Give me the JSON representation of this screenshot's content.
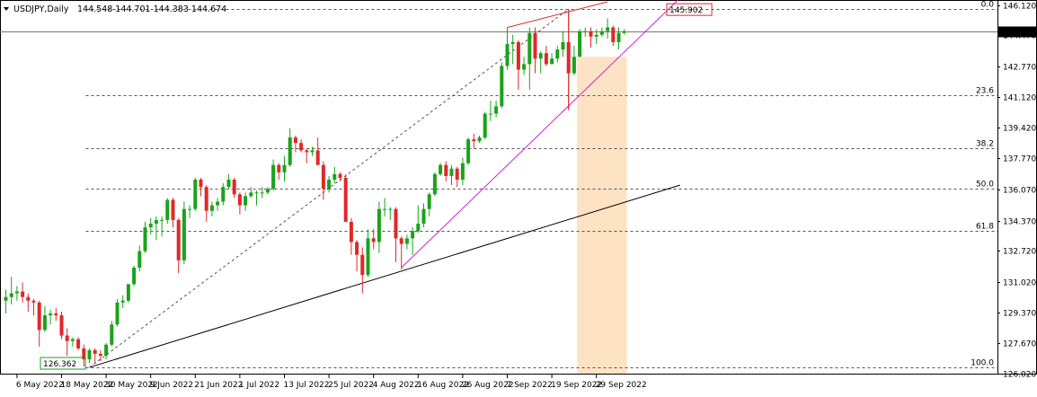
{
  "header": {
    "symbol_timeframe": "USDJPY,Daily",
    "ohlc": "144.548 144.701 144.383 144.674"
  },
  "colors": {
    "bull": "#1aa31a",
    "bear": "#e02828",
    "fib": "#555555",
    "channel_lower": "#d020d0",
    "channel_upper": "#e02828",
    "trendline": "#000000",
    "zone": "#fde3c4",
    "price_label_bg": "#000000"
  },
  "chart_data": {
    "type": "candlestick",
    "title": "USDJPY,Daily",
    "ohlc_readout": [
      144.548,
      144.701,
      144.383,
      144.674
    ],
    "ylim": [
      126.02,
      146.3
    ],
    "y_ticks": [
      "146.120",
      "144.470",
      "142.770",
      "141.120",
      "139.420",
      "137.770",
      "136.070",
      "134.370",
      "132.720",
      "131.020",
      "129.370",
      "127.670",
      "126.020"
    ],
    "x_tick_labels": [
      "6 May 2022",
      "18 May 2022",
      "30 May 2022",
      "9 Jun 2022",
      "21 Jun 2022",
      "1 Jul 2022",
      "13 Jul 2022",
      "25 Jul 2022",
      "4 Aug 2022",
      "16 Aug 2022",
      "26 Aug 2022",
      "7 Sep 2022",
      "19 Sep 2022",
      "29 Sep 2022"
    ],
    "current_price": "144.674",
    "fibonacci": {
      "levels": [
        {
          "label": "0.0",
          "price": 145.902
        },
        {
          "label": "23.6",
          "price": 141.22
        },
        {
          "label": "38.2",
          "price": 138.32
        },
        {
          "label": "50.0",
          "price": 136.13
        },
        {
          "label": "61.8",
          "price": 133.79
        },
        {
          "label": "100.0",
          "price": 126.362
        }
      ]
    },
    "annotations": [
      {
        "text": "145.902",
        "price": 145.902,
        "color": "#e02828"
      },
      {
        "text": "126.362",
        "price": 126.362,
        "color": "#1aa31a"
      }
    ],
    "candles": [
      {
        "date": "2022-05-04",
        "o": 130.0,
        "h": 130.6,
        "l": 129.3,
        "c": 130.2
      },
      {
        "date": "2022-05-05",
        "o": 130.2,
        "h": 131.3,
        "l": 129.8,
        "c": 130.4
      },
      {
        "date": "2022-05-06",
        "o": 130.4,
        "h": 130.8,
        "l": 130.0,
        "c": 130.5
      },
      {
        "date": "2022-05-09",
        "o": 130.5,
        "h": 131.0,
        "l": 129.9,
        "c": 130.2
      },
      {
        "date": "2022-05-10",
        "o": 130.2,
        "h": 130.4,
        "l": 129.4,
        "c": 130.0
      },
      {
        "date": "2022-05-11",
        "o": 130.0,
        "h": 130.1,
        "l": 129.2,
        "c": 129.9
      },
      {
        "date": "2022-05-12",
        "o": 129.9,
        "h": 130.0,
        "l": 127.5,
        "c": 128.4
      },
      {
        "date": "2022-05-13",
        "o": 128.4,
        "h": 129.7,
        "l": 128.3,
        "c": 129.2
      },
      {
        "date": "2022-05-16",
        "o": 129.2,
        "h": 129.5,
        "l": 128.7,
        "c": 129.3
      },
      {
        "date": "2022-05-17",
        "o": 129.3,
        "h": 129.6,
        "l": 128.9,
        "c": 129.2
      },
      {
        "date": "2022-05-18",
        "o": 129.2,
        "h": 129.4,
        "l": 127.9,
        "c": 128.1
      },
      {
        "date": "2022-05-19",
        "o": 128.1,
        "h": 128.5,
        "l": 127.0,
        "c": 127.8
      },
      {
        "date": "2022-05-20",
        "o": 127.8,
        "h": 128.0,
        "l": 127.5,
        "c": 127.9
      },
      {
        "date": "2022-05-23",
        "o": 127.9,
        "h": 128.0,
        "l": 127.3,
        "c": 127.4
      },
      {
        "date": "2022-05-24",
        "o": 127.4,
        "h": 127.6,
        "l": 126.4,
        "c": 126.8
      },
      {
        "date": "2022-05-25",
        "o": 126.8,
        "h": 127.4,
        "l": 126.6,
        "c": 127.3
      },
      {
        "date": "2022-05-26",
        "o": 127.3,
        "h": 127.4,
        "l": 126.6,
        "c": 127.1
      },
      {
        "date": "2022-05-27",
        "o": 127.1,
        "h": 127.3,
        "l": 126.7,
        "c": 127.0
      },
      {
        "date": "2022-05-30",
        "o": 127.0,
        "h": 127.7,
        "l": 126.8,
        "c": 127.6
      },
      {
        "date": "2022-05-31",
        "o": 127.6,
        "h": 128.9,
        "l": 127.5,
        "c": 128.7
      },
      {
        "date": "2022-06-01",
        "o": 128.7,
        "h": 130.1,
        "l": 128.6,
        "c": 129.9
      },
      {
        "date": "2022-06-02",
        "o": 129.9,
        "h": 130.3,
        "l": 129.6,
        "c": 130.0
      },
      {
        "date": "2022-06-03",
        "o": 130.0,
        "h": 130.9,
        "l": 129.9,
        "c": 130.9
      },
      {
        "date": "2022-06-06",
        "o": 130.9,
        "h": 131.9,
        "l": 130.8,
        "c": 131.8
      },
      {
        "date": "2022-06-07",
        "o": 131.8,
        "h": 133.0,
        "l": 131.6,
        "c": 132.7
      },
      {
        "date": "2022-06-08",
        "o": 132.7,
        "h": 134.3,
        "l": 132.6,
        "c": 134.0
      },
      {
        "date": "2022-06-09",
        "o": 134.0,
        "h": 134.5,
        "l": 133.6,
        "c": 134.2
      },
      {
        "date": "2022-06-10",
        "o": 134.2,
        "h": 134.6,
        "l": 133.3,
        "c": 134.4
      },
      {
        "date": "2022-06-13",
        "o": 134.4,
        "h": 134.6,
        "l": 133.5,
        "c": 134.4
      },
      {
        "date": "2022-06-14",
        "o": 134.4,
        "h": 135.6,
        "l": 134.2,
        "c": 135.5
      },
      {
        "date": "2022-06-15",
        "o": 135.5,
        "h": 135.6,
        "l": 134.0,
        "c": 134.4
      },
      {
        "date": "2022-06-16",
        "o": 134.4,
        "h": 134.5,
        "l": 131.5,
        "c": 132.2
      },
      {
        "date": "2022-06-17",
        "o": 132.2,
        "h": 135.4,
        "l": 132.0,
        "c": 135.0
      },
      {
        "date": "2022-06-20",
        "o": 135.0,
        "h": 135.2,
        "l": 134.5,
        "c": 135.0
      },
      {
        "date": "2022-06-21",
        "o": 135.0,
        "h": 136.7,
        "l": 134.9,
        "c": 136.6
      },
      {
        "date": "2022-06-22",
        "o": 136.6,
        "h": 136.7,
        "l": 135.7,
        "c": 136.2
      },
      {
        "date": "2022-06-23",
        "o": 136.2,
        "h": 136.3,
        "l": 134.3,
        "c": 134.9
      },
      {
        "date": "2022-06-24",
        "o": 134.9,
        "h": 135.4,
        "l": 134.6,
        "c": 135.2
      },
      {
        "date": "2022-06-27",
        "o": 135.2,
        "h": 135.6,
        "l": 134.9,
        "c": 135.4
      },
      {
        "date": "2022-06-28",
        "o": 135.4,
        "h": 136.4,
        "l": 135.2,
        "c": 136.2
      },
      {
        "date": "2022-06-29",
        "o": 136.2,
        "h": 136.9,
        "l": 136.1,
        "c": 136.6
      },
      {
        "date": "2022-06-30",
        "o": 136.6,
        "h": 136.7,
        "l": 135.6,
        "c": 135.8
      },
      {
        "date": "2022-07-01",
        "o": 135.8,
        "h": 135.9,
        "l": 134.7,
        "c": 135.2
      },
      {
        "date": "2022-07-04",
        "o": 135.2,
        "h": 135.9,
        "l": 134.9,
        "c": 135.7
      },
      {
        "date": "2022-07-05",
        "o": 135.7,
        "h": 136.2,
        "l": 135.6,
        "c": 135.9
      },
      {
        "date": "2022-07-06",
        "o": 135.9,
        "h": 136.0,
        "l": 135.2,
        "c": 135.9
      },
      {
        "date": "2022-07-07",
        "o": 135.9,
        "h": 136.2,
        "l": 135.6,
        "c": 135.9
      },
      {
        "date": "2022-07-08",
        "o": 135.9,
        "h": 136.2,
        "l": 135.8,
        "c": 136.1
      },
      {
        "date": "2022-07-11",
        "o": 136.1,
        "h": 137.7,
        "l": 136.0,
        "c": 137.4
      },
      {
        "date": "2022-07-12",
        "o": 137.4,
        "h": 137.5,
        "l": 136.6,
        "c": 137.0
      },
      {
        "date": "2022-07-13",
        "o": 137.0,
        "h": 137.9,
        "l": 136.5,
        "c": 137.4
      },
      {
        "date": "2022-07-14",
        "o": 137.4,
        "h": 139.4,
        "l": 137.3,
        "c": 138.9
      },
      {
        "date": "2022-07-15",
        "o": 138.9,
        "h": 139.0,
        "l": 138.1,
        "c": 138.6
      },
      {
        "date": "2022-07-18",
        "o": 138.6,
        "h": 138.8,
        "l": 138.1,
        "c": 138.2
      },
      {
        "date": "2022-07-19",
        "o": 138.2,
        "h": 138.3,
        "l": 137.5,
        "c": 138.1
      },
      {
        "date": "2022-07-20",
        "o": 138.1,
        "h": 138.4,
        "l": 137.9,
        "c": 138.2
      },
      {
        "date": "2022-07-21",
        "o": 138.2,
        "h": 138.9,
        "l": 137.4,
        "c": 137.4
      },
      {
        "date": "2022-07-22",
        "o": 137.4,
        "h": 137.6,
        "l": 135.5,
        "c": 136.1
      },
      {
        "date": "2022-07-25",
        "o": 136.1,
        "h": 136.8,
        "l": 135.9,
        "c": 136.6
      },
      {
        "date": "2022-07-26",
        "o": 136.6,
        "h": 137.3,
        "l": 136.4,
        "c": 136.9
      },
      {
        "date": "2022-07-27",
        "o": 136.9,
        "h": 137.0,
        "l": 136.5,
        "c": 136.7
      },
      {
        "date": "2022-07-28",
        "o": 136.7,
        "h": 136.9,
        "l": 134.5,
        "c": 134.3
      },
      {
        "date": "2022-07-29",
        "o": 134.3,
        "h": 134.5,
        "l": 132.5,
        "c": 133.2
      },
      {
        "date": "2022-08-01",
        "o": 133.2,
        "h": 133.3,
        "l": 131.6,
        "c": 132.5
      },
      {
        "date": "2022-08-02",
        "o": 132.5,
        "h": 132.9,
        "l": 130.4,
        "c": 131.4
      },
      {
        "date": "2022-08-03",
        "o": 131.4,
        "h": 133.9,
        "l": 131.3,
        "c": 133.4
      },
      {
        "date": "2022-08-04",
        "o": 133.4,
        "h": 133.9,
        "l": 132.8,
        "c": 133.2
      },
      {
        "date": "2022-08-05",
        "o": 133.2,
        "h": 135.4,
        "l": 132.6,
        "c": 135.0
      },
      {
        "date": "2022-08-08",
        "o": 135.0,
        "h": 135.6,
        "l": 134.6,
        "c": 135.0
      },
      {
        "date": "2022-08-09",
        "o": 135.0,
        "h": 135.1,
        "l": 134.4,
        "c": 135.0
      },
      {
        "date": "2022-08-10",
        "o": 135.0,
        "h": 135.1,
        "l": 132.1,
        "c": 133.4
      },
      {
        "date": "2022-08-11",
        "o": 133.4,
        "h": 133.5,
        "l": 131.7,
        "c": 133.1
      },
      {
        "date": "2022-08-12",
        "o": 133.1,
        "h": 133.6,
        "l": 132.8,
        "c": 133.4
      },
      {
        "date": "2022-08-15",
        "o": 133.4,
        "h": 134.0,
        "l": 132.5,
        "c": 133.8
      },
      {
        "date": "2022-08-16",
        "o": 133.8,
        "h": 135.2,
        "l": 133.7,
        "c": 134.2
      },
      {
        "date": "2022-08-17",
        "o": 134.2,
        "h": 135.3,
        "l": 134.0,
        "c": 135.0
      },
      {
        "date": "2022-08-18",
        "o": 135.0,
        "h": 135.9,
        "l": 134.6,
        "c": 135.8
      },
      {
        "date": "2022-08-19",
        "o": 135.8,
        "h": 137.0,
        "l": 135.7,
        "c": 136.9
      },
      {
        "date": "2022-08-22",
        "o": 136.9,
        "h": 137.5,
        "l": 136.8,
        "c": 137.4
      },
      {
        "date": "2022-08-23",
        "o": 137.4,
        "h": 137.6,
        "l": 136.5,
        "c": 136.8
      },
      {
        "date": "2022-08-24",
        "o": 136.8,
        "h": 137.4,
        "l": 136.3,
        "c": 137.2
      },
      {
        "date": "2022-08-25",
        "o": 137.2,
        "h": 137.3,
        "l": 136.2,
        "c": 136.6
      },
      {
        "date": "2022-08-26",
        "o": 136.6,
        "h": 137.8,
        "l": 136.3,
        "c": 137.5
      },
      {
        "date": "2022-08-29",
        "o": 137.5,
        "h": 138.9,
        "l": 137.4,
        "c": 138.8
      },
      {
        "date": "2022-08-30",
        "o": 138.8,
        "h": 139.1,
        "l": 138.3,
        "c": 138.7
      },
      {
        "date": "2022-08-31",
        "o": 138.7,
        "h": 139.0,
        "l": 138.6,
        "c": 138.9
      },
      {
        "date": "2022-09-01",
        "o": 138.9,
        "h": 140.3,
        "l": 138.8,
        "c": 140.2
      },
      {
        "date": "2022-09-02",
        "o": 140.2,
        "h": 140.9,
        "l": 139.8,
        "c": 140.2
      },
      {
        "date": "2022-09-05",
        "o": 140.2,
        "h": 140.9,
        "l": 140.0,
        "c": 140.6
      },
      {
        "date": "2022-09-06",
        "o": 140.6,
        "h": 143.0,
        "l": 140.5,
        "c": 142.8
      },
      {
        "date": "2022-09-07",
        "o": 142.8,
        "h": 144.9,
        "l": 142.6,
        "c": 144.0
      },
      {
        "date": "2022-09-08",
        "o": 144.0,
        "h": 144.5,
        "l": 142.9,
        "c": 144.1
      },
      {
        "date": "2022-09-09",
        "o": 144.1,
        "h": 144.2,
        "l": 141.5,
        "c": 142.6
      },
      {
        "date": "2022-09-12",
        "o": 142.6,
        "h": 143.3,
        "l": 142.3,
        "c": 142.9
      },
      {
        "date": "2022-09-13",
        "o": 142.9,
        "h": 144.9,
        "l": 141.5,
        "c": 144.6
      },
      {
        "date": "2022-09-14",
        "o": 144.6,
        "h": 144.9,
        "l": 142.4,
        "c": 143.2
      },
      {
        "date": "2022-09-15",
        "o": 143.2,
        "h": 143.6,
        "l": 142.4,
        "c": 143.5
      },
      {
        "date": "2022-09-16",
        "o": 143.5,
        "h": 143.9,
        "l": 142.8,
        "c": 142.9
      },
      {
        "date": "2022-09-19",
        "o": 142.9,
        "h": 143.5,
        "l": 142.9,
        "c": 143.2
      },
      {
        "date": "2022-09-20",
        "o": 143.2,
        "h": 143.9,
        "l": 143.0,
        "c": 143.7
      },
      {
        "date": "2022-09-21",
        "o": 143.7,
        "h": 144.7,
        "l": 143.3,
        "c": 144.1
      },
      {
        "date": "2022-09-22",
        "o": 144.1,
        "h": 145.9,
        "l": 140.4,
        "c": 142.4
      },
      {
        "date": "2022-09-23",
        "o": 142.4,
        "h": 143.9,
        "l": 142.3,
        "c": 143.3
      },
      {
        "date": "2022-09-26",
        "o": 143.3,
        "h": 144.8,
        "l": 143.3,
        "c": 144.7
      },
      {
        "date": "2022-09-27",
        "o": 144.7,
        "h": 144.9,
        "l": 144.4,
        "c": 144.7
      },
      {
        "date": "2022-09-28",
        "o": 144.7,
        "h": 144.9,
        "l": 143.8,
        "c": 144.4
      },
      {
        "date": "2022-09-29",
        "o": 144.4,
        "h": 144.8,
        "l": 144.0,
        "c": 144.5
      },
      {
        "date": "2022-09-30",
        "o": 144.5,
        "h": 144.9,
        "l": 144.4,
        "c": 144.7
      },
      {
        "date": "2022-10-03",
        "o": 144.7,
        "h": 145.4,
        "l": 144.3,
        "c": 144.9
      },
      {
        "date": "2022-10-04",
        "o": 144.9,
        "h": 145.0,
        "l": 143.9,
        "c": 144.1
      },
      {
        "date": "2022-10-05",
        "o": 144.1,
        "h": 144.9,
        "l": 143.7,
        "c": 144.6
      },
      {
        "date": "2022-10-06",
        "o": 144.6,
        "h": 144.8,
        "l": 144.5,
        "c": 144.7
      }
    ],
    "trendlines": [
      {
        "name": "long-term-support",
        "style": "solid",
        "color": "#000000",
        "from": {
          "date": "2022-05-25",
          "price": 126.36
        },
        "to": {
          "date": "2022-10-20",
          "price": 136.3
        }
      },
      {
        "name": "lower-channel",
        "style": "solid",
        "color": "#d020d0",
        "from": {
          "date": "2022-08-11",
          "price": 131.8
        },
        "to": {
          "date": "2022-10-20",
          "price": 146.5
        }
      },
      {
        "name": "upper-channel",
        "style": "solid",
        "color": "#e02828",
        "from": {
          "date": "2022-09-07",
          "price": 144.9
        },
        "to": {
          "date": "2022-10-03",
          "price": 146.3
        }
      },
      {
        "name": "retracement-diagonal",
        "style": "dashed",
        "color": "#555555",
        "from": {
          "date": "2022-05-25",
          "price": 126.36
        },
        "to": {
          "date": "2022-09-22",
          "price": 145.9
        }
      },
      {
        "name": "spike-vertical",
        "style": "solid",
        "color": "#e02828",
        "from": {
          "date": "2022-09-22",
          "price": 145.9
        },
        "to": {
          "date": "2022-09-22",
          "price": 140.4
        }
      }
    ],
    "time_zone": {
      "from": "2022-09-26",
      "to": "2022-10-06",
      "top_price": 143.3,
      "bottom_price": 126.02
    },
    "grid": false
  }
}
